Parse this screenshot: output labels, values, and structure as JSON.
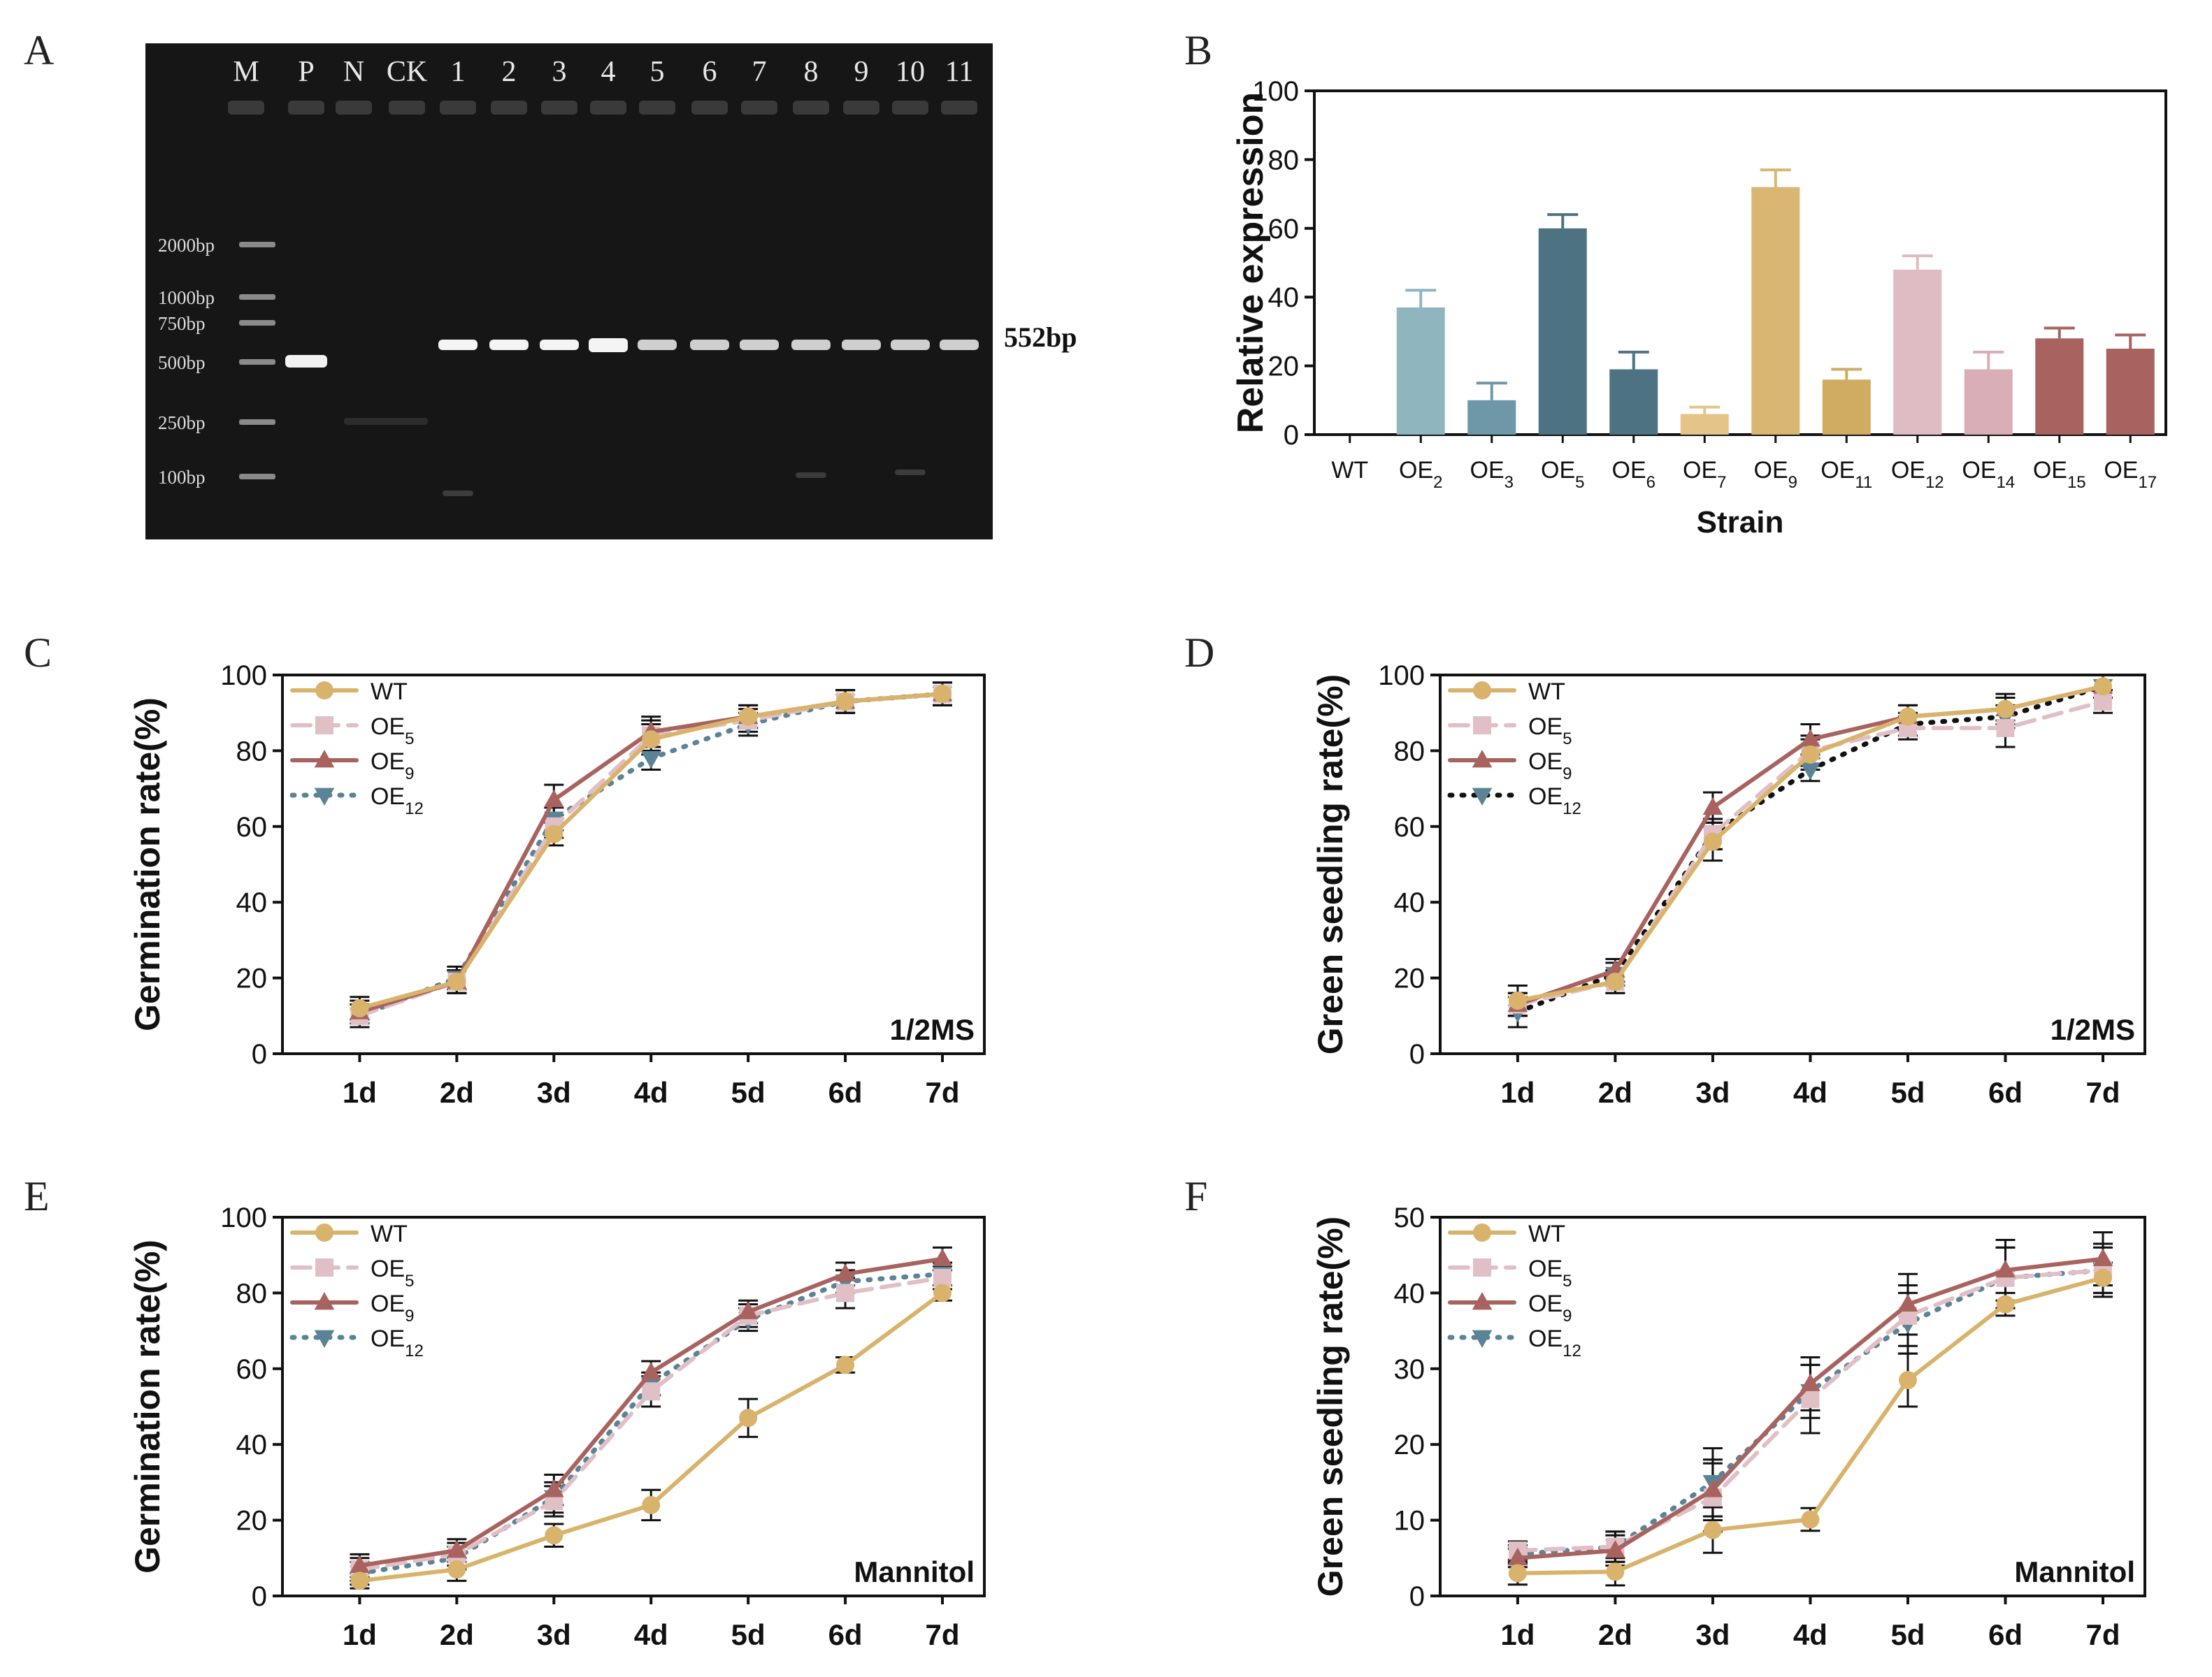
{
  "panel_labels": {
    "A": "A",
    "B": "B",
    "C": "C",
    "D": "D",
    "E": "E",
    "F": "F"
  },
  "gel": {
    "lane_labels": [
      "M",
      "P",
      "N",
      "CK",
      "1",
      "2",
      "3",
      "4",
      "5",
      "6",
      "7",
      "8",
      "9",
      "10",
      "11"
    ],
    "marker_labels": [
      "2000bp",
      "1000bp",
      "750bp",
      "500bp",
      "250bp",
      "100bp"
    ],
    "band_label": "552bp"
  },
  "colors": {
    "WT": "#d9b36b",
    "OE5": "#e0bfc5",
    "OE9": "#a8635f",
    "OE12": "#5a8496",
    "bar_OE2": "#8fb6bf",
    "bar_OE3": "#6e97a7",
    "bar_OE5": "#4d7383",
    "bar_OE6": "#4d7383",
    "bar_OE7": "#e5c48a",
    "bar_OE9": "#dab673",
    "bar_OE11": "#d0ac63",
    "bar_OE12": "#dfbcc3",
    "bar_OE14": "#d9aeb7",
    "bar_OE15": "#a8635f",
    "bar_OE17": "#a8635f",
    "gel_bg": "#161616"
  },
  "line_legend": [
    {
      "key": "WT",
      "base": "WT",
      "sub": ""
    },
    {
      "key": "OE5",
      "base": "OE",
      "sub": "5"
    },
    {
      "key": "OE9",
      "base": "OE",
      "sub": "9"
    },
    {
      "key": "OE12",
      "base": "OE",
      "sub": "12"
    }
  ],
  "chart_data": [
    {
      "id": "B",
      "type": "bar",
      "title": "",
      "xlabel": "Strain",
      "ylabel": "Relative expression",
      "ylim": [
        0,
        100
      ],
      "yticks": [
        0,
        20,
        40,
        60,
        80,
        100
      ],
      "categories": [
        {
          "base": "WT",
          "sub": ""
        },
        {
          "base": "OE",
          "sub": "2"
        },
        {
          "base": "OE",
          "sub": "3"
        },
        {
          "base": "OE",
          "sub": "5"
        },
        {
          "base": "OE",
          "sub": "6"
        },
        {
          "base": "OE",
          "sub": "7"
        },
        {
          "base": "OE",
          "sub": "9"
        },
        {
          "base": "OE",
          "sub": "11"
        },
        {
          "base": "OE",
          "sub": "12"
        },
        {
          "base": "OE",
          "sub": "14"
        },
        {
          "base": "OE",
          "sub": "15"
        },
        {
          "base": "OE",
          "sub": "17"
        }
      ],
      "values": [
        0,
        37,
        10,
        60,
        19,
        6,
        72,
        16,
        48,
        19,
        28,
        25
      ],
      "errors": [
        0,
        5,
        5,
        4,
        5,
        2,
        5,
        3,
        4,
        5,
        3,
        4
      ],
      "color_keys": [
        "bar_OE2",
        "bar_OE2",
        "bar_OE3",
        "bar_OE5",
        "bar_OE6",
        "bar_OE7",
        "bar_OE9",
        "bar_OE11",
        "bar_OE12",
        "bar_OE14",
        "bar_OE15",
        "bar_OE17"
      ]
    },
    {
      "id": "C",
      "type": "line",
      "ylabel": "Germination rate(%)",
      "xlabel": "",
      "annotation": "1/2MS",
      "ylim": [
        0,
        100
      ],
      "yticks": [
        0,
        20,
        40,
        60,
        80,
        100
      ],
      "categories": [
        "1d",
        "2d",
        "3d",
        "4d",
        "5d",
        "6d",
        "7d"
      ],
      "series": [
        {
          "name": "WT",
          "values": [
            12,
            19,
            58,
            83,
            89,
            93,
            95
          ],
          "errors": [
            3,
            3,
            3,
            4,
            3,
            3,
            3
          ]
        },
        {
          "name": "OE5",
          "values": [
            10,
            19,
            60,
            84,
            88,
            93,
            95
          ],
          "errors": [
            3,
            3,
            3,
            4,
            3,
            3,
            3
          ]
        },
        {
          "name": "OE9",
          "values": [
            11,
            19,
            67,
            85,
            89,
            93,
            95
          ],
          "errors": [
            3,
            3,
            4,
            4,
            3,
            3,
            3
          ]
        },
        {
          "name": "OE12",
          "values": [
            10,
            20,
            62,
            78,
            87,
            93,
            95
          ],
          "errors": [
            3,
            3,
            3,
            3,
            3,
            3,
            3
          ]
        }
      ]
    },
    {
      "id": "D",
      "type": "line",
      "ylabel": "Green seedling rate(%)",
      "xlabel": "",
      "annotation": "1/2MS",
      "ylim": [
        0,
        100
      ],
      "yticks": [
        0,
        20,
        40,
        60,
        80,
        100
      ],
      "categories": [
        "1d",
        "2d",
        "3d",
        "4d",
        "5d",
        "6d",
        "7d"
      ],
      "series": [
        {
          "name": "WT",
          "values": [
            14,
            19,
            56,
            79,
            89,
            91,
            97
          ],
          "errors": [
            4,
            3,
            5,
            4,
            3,
            3,
            3
          ]
        },
        {
          "name": "OE5",
          "values": [
            13,
            19,
            58,
            80,
            86,
            86,
            93
          ],
          "errors": [
            3,
            3,
            4,
            4,
            3,
            5,
            3
          ]
        },
        {
          "name": "OE9",
          "values": [
            13,
            22,
            65,
            83,
            89,
            91,
            97
          ],
          "errors": [
            3,
            3,
            4,
            4,
            3,
            4,
            3
          ]
        },
        {
          "name": "OE12",
          "values": [
            11,
            21,
            58,
            75,
            87,
            89,
            97
          ],
          "errors": [
            4,
            3,
            4,
            3,
            3,
            3,
            3
          ]
        }
      ]
    },
    {
      "id": "E",
      "type": "line",
      "ylabel": "Germination rate(%)",
      "xlabel": "",
      "annotation": "Mannitol",
      "ylim": [
        0,
        100
      ],
      "yticks": [
        0,
        20,
        40,
        60,
        80,
        100
      ],
      "categories": [
        "1d",
        "2d",
        "3d",
        "4d",
        "5d",
        "6d",
        "7d"
      ],
      "series": [
        {
          "name": "WT",
          "values": [
            4,
            7,
            16,
            24,
            47,
            61,
            80
          ],
          "errors": [
            2,
            3,
            3,
            4,
            5,
            2,
            2
          ]
        },
        {
          "name": "OE5",
          "values": [
            7,
            11,
            25,
            54,
            74,
            80,
            84
          ],
          "errors": [
            3,
            3,
            4,
            4,
            3,
            4,
            3
          ]
        },
        {
          "name": "OE9",
          "values": [
            8,
            12,
            28,
            59,
            75,
            85,
            89
          ],
          "errors": [
            3,
            3,
            4,
            3,
            3,
            3,
            3
          ]
        },
        {
          "name": "OE12",
          "values": [
            6,
            10,
            26,
            56,
            73,
            83,
            85
          ],
          "errors": [
            3,
            3,
            4,
            3,
            3,
            3,
            3
          ]
        }
      ]
    },
    {
      "id": "F",
      "type": "line",
      "ylabel": "Green seedling rate(%)",
      "xlabel": "",
      "annotation": "Mannitol",
      "ylim": [
        0,
        50
      ],
      "yticks": [
        0,
        10,
        20,
        30,
        40,
        50
      ],
      "categories": [
        "1d",
        "2d",
        "3d",
        "4d",
        "5d",
        "6d",
        "7d"
      ],
      "series": [
        {
          "name": "WT",
          "values": [
            3,
            3.2,
            8.7,
            10.1,
            28.5,
            38.5,
            42
          ],
          "errors": [
            1.5,
            1.8,
            3,
            1.5,
            3.5,
            1.5,
            2
          ]
        },
        {
          "name": "OE5",
          "values": [
            6,
            6.5,
            13,
            26,
            37,
            42,
            43
          ],
          "errors": [
            1.2,
            2,
            4.5,
            4.5,
            4,
            4,
            3
          ]
        },
        {
          "name": "OE9",
          "values": [
            5,
            6,
            14,
            28,
            38.5,
            43,
            44.5
          ],
          "errors": [
            1.2,
            2,
            4,
            3.5,
            4,
            4,
            3.5
          ]
        },
        {
          "name": "OE12",
          "values": [
            5.5,
            6.5,
            15,
            27,
            36,
            42,
            43
          ],
          "errors": [
            1.2,
            2,
            4.5,
            3.5,
            4,
            4,
            3.5
          ]
        }
      ]
    }
  ]
}
